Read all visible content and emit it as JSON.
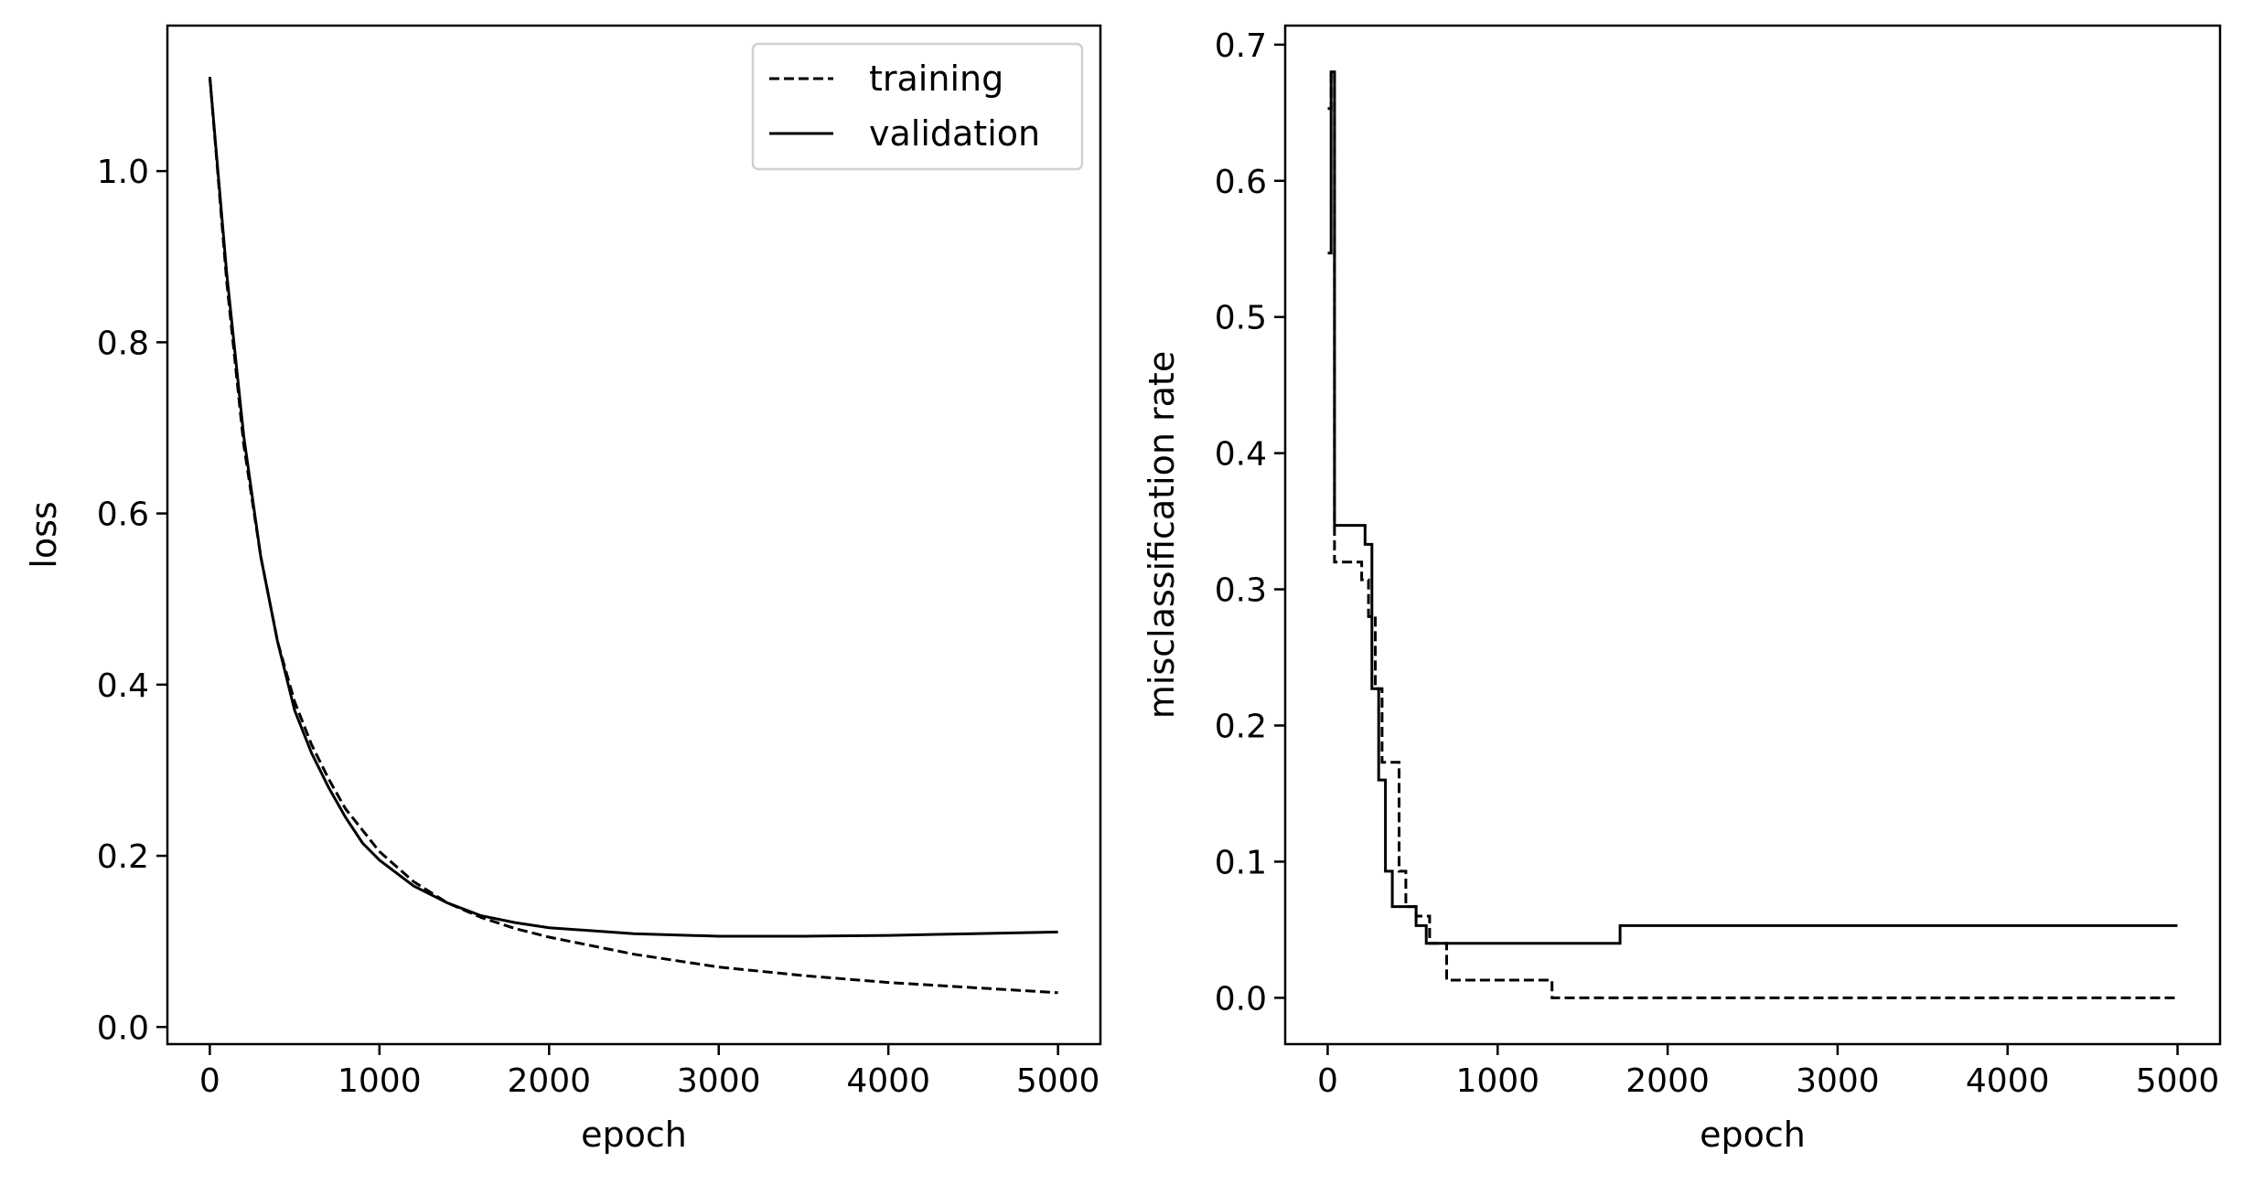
{
  "chart_data": [
    {
      "type": "line",
      "xlabel": "epoch",
      "ylabel": "loss",
      "xlim": [
        -250,
        5250
      ],
      "ylim": [
        -0.02,
        1.17
      ],
      "xticks": [
        0,
        1000,
        2000,
        3000,
        4000,
        5000
      ],
      "xtick_labels": [
        "0",
        "1000",
        "2000",
        "3000",
        "4000",
        "5000"
      ],
      "yticks": [
        0.0,
        0.2,
        0.4,
        0.6,
        0.8,
        1.0
      ],
      "ytick_labels": [
        "0.0",
        "0.2",
        "0.4",
        "0.6",
        "0.8",
        "1.0"
      ],
      "legend_position": "top-right",
      "grid": false,
      "series": [
        {
          "name": "training",
          "style": "dashed",
          "color": "#000000",
          "x": [
            0,
            100,
            200,
            300,
            400,
            500,
            600,
            700,
            800,
            900,
            1000,
            1200,
            1400,
            1600,
            1800,
            2000,
            2500,
            3000,
            3500,
            4000,
            4500,
            5000
          ],
          "y": [
            1.11,
            0.87,
            0.68,
            0.55,
            0.45,
            0.38,
            0.33,
            0.29,
            0.255,
            0.23,
            0.205,
            0.17,
            0.145,
            0.128,
            0.115,
            0.105,
            0.085,
            0.07,
            0.06,
            0.052,
            0.046,
            0.04
          ]
        },
        {
          "name": "validation",
          "style": "solid",
          "color": "#000000",
          "x": [
            0,
            100,
            200,
            300,
            400,
            500,
            600,
            700,
            800,
            900,
            1000,
            1200,
            1400,
            1600,
            1800,
            2000,
            2500,
            3000,
            3500,
            4000,
            4500,
            5000
          ],
          "y": [
            1.11,
            0.88,
            0.69,
            0.55,
            0.45,
            0.37,
            0.32,
            0.28,
            0.245,
            0.215,
            0.195,
            0.165,
            0.145,
            0.13,
            0.122,
            0.116,
            0.109,
            0.106,
            0.106,
            0.107,
            0.109,
            0.111
          ]
        }
      ]
    },
    {
      "type": "line",
      "xlabel": "epoch",
      "ylabel": "misclassification rate",
      "xlim": [
        -250,
        5250
      ],
      "ylim": [
        -0.034,
        0.714
      ],
      "xticks": [
        0,
        1000,
        2000,
        3000,
        4000,
        5000
      ],
      "xtick_labels": [
        "0",
        "1000",
        "2000",
        "3000",
        "4000",
        "5000"
      ],
      "yticks": [
        0.0,
        0.1,
        0.2,
        0.3,
        0.4,
        0.5,
        0.6,
        0.7
      ],
      "ytick_labels": [
        "0.0",
        "0.1",
        "0.2",
        "0.3",
        "0.4",
        "0.5",
        "0.6",
        "0.7"
      ],
      "grid": false,
      "series": [
        {
          "name": "training",
          "style": "dashed",
          "color": "#000000",
          "step": true,
          "x": [
            0,
            20,
            40,
            60,
            200,
            240,
            280,
            320,
            360,
            420,
            460,
            520,
            600,
            700,
            1320,
            5000
          ],
          "y": [
            0.653,
            0.68,
            0.32,
            0.32,
            0.307,
            0.28,
            0.227,
            0.173,
            0.173,
            0.093,
            0.067,
            0.06,
            0.04,
            0.013,
            0.0,
            0.0
          ]
        },
        {
          "name": "validation",
          "style": "solid",
          "color": "#000000",
          "step": true,
          "x": [
            0,
            20,
            40,
            60,
            220,
            260,
            300,
            340,
            380,
            520,
            580,
            700,
            1720,
            5000
          ],
          "y": [
            0.547,
            0.68,
            0.347,
            0.347,
            0.333,
            0.227,
            0.16,
            0.093,
            0.067,
            0.053,
            0.04,
            0.04,
            0.053,
            0.053
          ]
        }
      ]
    }
  ]
}
